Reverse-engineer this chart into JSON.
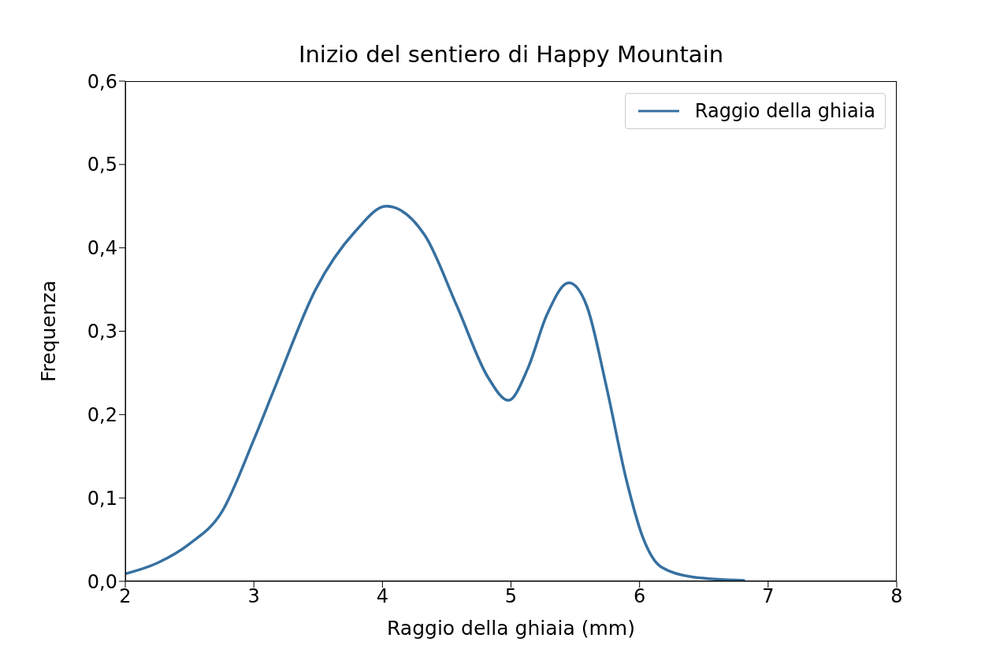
{
  "chart_data": {
    "type": "line",
    "title": "Inizio del sentiero di Happy Mountain",
    "xlabel": "Raggio della ghiaia (mm)",
    "ylabel": "Frequenza",
    "series": [
      {
        "name": "Raggio della ghiaia",
        "color": "#3670a0",
        "x": [
          2.0,
          2.25,
          2.5,
          2.75,
          3.0,
          3.17,
          3.48,
          3.79,
          4.03,
          4.33,
          4.58,
          4.82,
          4.98,
          5.13,
          5.28,
          5.45,
          5.59,
          5.74,
          5.9,
          6.02,
          6.17,
          6.42,
          6.82
        ],
        "values": [
          0.009,
          0.022,
          0.045,
          0.083,
          0.17,
          0.235,
          0.35,
          0.42,
          0.45,
          0.415,
          0.33,
          0.245,
          0.217,
          0.255,
          0.32,
          0.358,
          0.33,
          0.235,
          0.12,
          0.055,
          0.017,
          0.005,
          0.001
        ]
      }
    ],
    "xlim": [
      2,
      8
    ],
    "xticks": [
      2,
      3,
      4,
      5,
      6,
      7,
      8
    ],
    "ylim": [
      0,
      0.6
    ],
    "yticks": [
      {
        "value": 0,
        "label": "0,0"
      },
      {
        "value": 0.1,
        "label": "0,1"
      },
      {
        "value": 0.2,
        "label": "0,2"
      },
      {
        "value": 0.3,
        "label": "0,3"
      },
      {
        "value": 0.4,
        "label": "0,4"
      },
      {
        "value": 0.5,
        "label": "0,5"
      },
      {
        "value": 0.6,
        "label": "0,6"
      }
    ],
    "grid": false,
    "legend": "top right",
    "marker": "none",
    "line_style": "solid"
  }
}
